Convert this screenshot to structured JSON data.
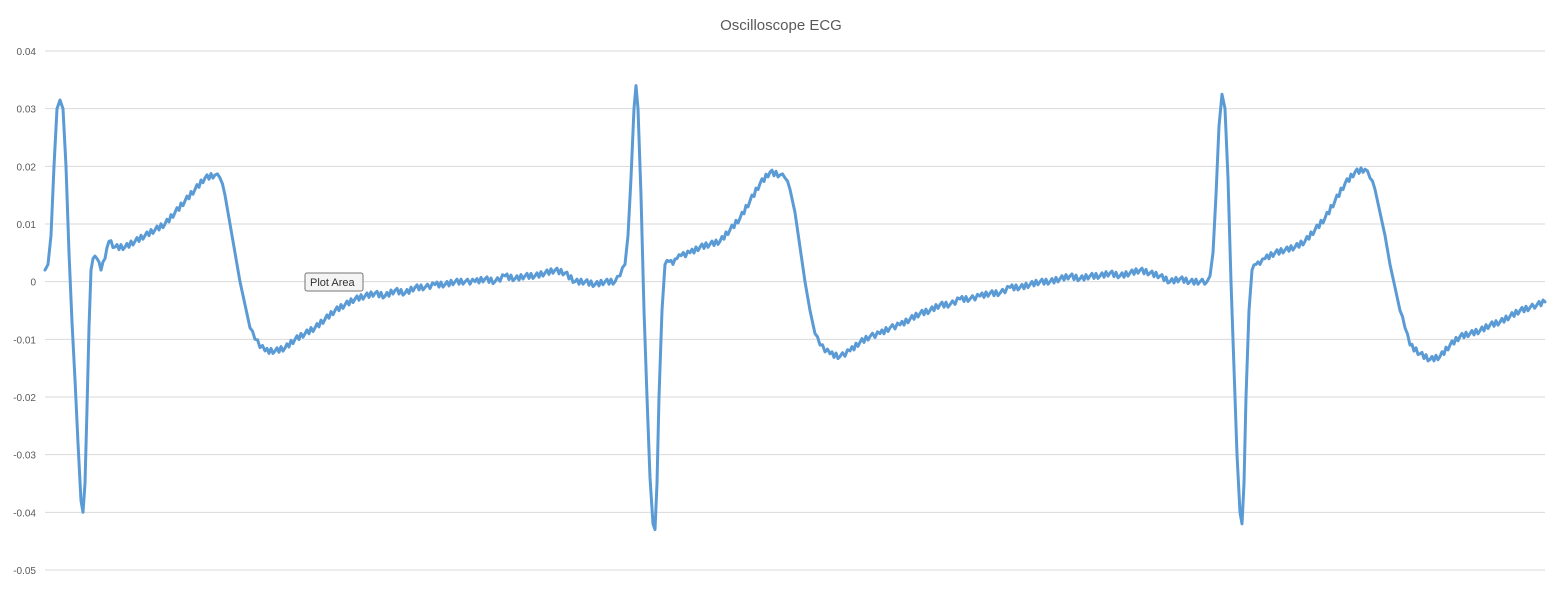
{
  "colors": {
    "series": "#5b9bd5",
    "grid": "#d9d9d9",
    "text": "#595959"
  },
  "tooltip": {
    "label": "Plot Area"
  },
  "chart_data": {
    "type": "line",
    "title": "Oscilloscope ECG",
    "xlabel": "",
    "ylabel": "",
    "ylim": [
      -0.05,
      0.04
    ],
    "yticks": [
      0.04,
      0.03,
      0.02,
      0.01,
      0,
      -0.01,
      -0.02,
      -0.03,
      -0.04,
      -0.05
    ],
    "ytick_labels": [
      "0.04",
      "0.03",
      "0.02",
      "0.01",
      "0",
      "-0.01",
      "-0.02",
      "-0.03",
      "-0.04",
      "-0.05"
    ],
    "grid": true,
    "legend": "none",
    "xlim": [
      0,
      1500
    ],
    "series": [
      {
        "points": [
          [
            0,
            0.002
          ],
          [
            3,
            0.003
          ],
          [
            6,
            0.008
          ],
          [
            9,
            0.02
          ],
          [
            12,
            0.03
          ],
          [
            15,
            0.0315
          ],
          [
            18,
            0.03
          ],
          [
            21,
            0.02
          ],
          [
            24,
            0.005
          ],
          [
            27,
            -0.007
          ],
          [
            30,
            -0.017
          ],
          [
            33,
            -0.028
          ],
          [
            36,
            -0.038
          ],
          [
            38,
            -0.04
          ],
          [
            40,
            -0.035
          ],
          [
            42,
            -0.022
          ],
          [
            44,
            -0.008
          ],
          [
            46,
            0.002
          ],
          [
            48,
            0.004
          ],
          [
            52,
            0.004
          ],
          [
            56,
            0.002
          ],
          [
            60,
            0.004
          ],
          [
            64,
            0.007
          ],
          [
            70,
            0.006
          ],
          [
            80,
            0.006
          ],
          [
            90,
            0.007
          ],
          [
            100,
            0.008
          ],
          [
            110,
            0.009
          ],
          [
            120,
            0.01
          ],
          [
            130,
            0.012
          ],
          [
            140,
            0.014
          ],
          [
            150,
            0.016
          ],
          [
            160,
            0.018
          ],
          [
            170,
            0.0185
          ],
          [
            175,
            0.018
          ],
          [
            180,
            0.015
          ],
          [
            185,
            0.01
          ],
          [
            190,
            0.005
          ],
          [
            195,
            0.0
          ],
          [
            200,
            -0.004
          ],
          [
            205,
            -0.008
          ],
          [
            210,
            -0.01
          ],
          [
            220,
            -0.012
          ],
          [
            230,
            -0.012
          ],
          [
            240,
            -0.0115
          ],
          [
            250,
            -0.01
          ],
          [
            260,
            -0.009
          ],
          [
            270,
            -0.008
          ],
          [
            280,
            -0.0065
          ],
          [
            290,
            -0.005
          ],
          [
            300,
            -0.004
          ],
          [
            310,
            -0.003
          ],
          [
            320,
            -0.0025
          ],
          [
            330,
            -0.002
          ],
          [
            340,
            -0.0025
          ],
          [
            350,
            -0.0015
          ],
          [
            360,
            -0.002
          ],
          [
            370,
            -0.001
          ],
          [
            380,
            -0.001
          ],
          [
            390,
            -0.0005
          ],
          [
            400,
            -0.0005
          ],
          [
            410,
            0.0
          ],
          [
            420,
            0.0
          ],
          [
            430,
            0.0
          ],
          [
            440,
            0.0005
          ],
          [
            450,
            0.0
          ],
          [
            460,
            0.001
          ],
          [
            470,
            0.0005
          ],
          [
            480,
            0.001
          ],
          [
            490,
            0.001
          ],
          [
            500,
            0.0015
          ],
          [
            510,
            0.002
          ],
          [
            520,
            0.0015
          ],
          [
            530,
            0.0
          ],
          [
            540,
            0.0
          ],
          [
            550,
            -0.0005
          ],
          [
            560,
            0.0
          ],
          [
            570,
            0.0
          ],
          [
            575,
            0.001
          ],
          [
            580,
            0.003
          ],
          [
            583,
            0.008
          ],
          [
            586,
            0.018
          ],
          [
            589,
            0.03
          ],
          [
            591,
            0.034
          ],
          [
            593,
            0.03
          ],
          [
            596,
            0.015
          ],
          [
            599,
            -0.005
          ],
          [
            602,
            -0.02
          ],
          [
            605,
            -0.034
          ],
          [
            608,
            -0.042
          ],
          [
            610,
            -0.043
          ],
          [
            612,
            -0.035
          ],
          [
            614,
            -0.02
          ],
          [
            617,
            -0.005
          ],
          [
            620,
            0.003
          ],
          [
            624,
            0.0035
          ],
          [
            628,
            0.003
          ],
          [
            632,
            0.004
          ],
          [
            636,
            0.0045
          ],
          [
            645,
            0.005
          ],
          [
            655,
            0.006
          ],
          [
            665,
            0.0065
          ],
          [
            675,
            0.007
          ],
          [
            685,
            0.009
          ],
          [
            695,
            0.011
          ],
          [
            705,
            0.014
          ],
          [
            715,
            0.017
          ],
          [
            725,
            0.019
          ],
          [
            735,
            0.0185
          ],
          [
            740,
            0.018
          ],
          [
            745,
            0.016
          ],
          [
            750,
            0.012
          ],
          [
            755,
            0.006
          ],
          [
            760,
            0.0
          ],
          [
            765,
            -0.005
          ],
          [
            770,
            -0.009
          ],
          [
            775,
            -0.011
          ],
          [
            785,
            -0.0125
          ],
          [
            795,
            -0.013
          ],
          [
            805,
            -0.012
          ],
          [
            815,
            -0.0105
          ],
          [
            825,
            -0.0095
          ],
          [
            835,
            -0.009
          ],
          [
            845,
            -0.008
          ],
          [
            855,
            -0.0075
          ],
          [
            865,
            -0.0065
          ],
          [
            875,
            -0.0055
          ],
          [
            885,
            -0.005
          ],
          [
            895,
            -0.004
          ],
          [
            905,
            -0.004
          ],
          [
            915,
            -0.003
          ],
          [
            925,
            -0.003
          ],
          [
            935,
            -0.0025
          ],
          [
            945,
            -0.002
          ],
          [
            955,
            -0.002
          ],
          [
            965,
            -0.001
          ],
          [
            975,
            -0.001
          ],
          [
            985,
            -0.0005
          ],
          [
            995,
            0.0
          ],
          [
            1005,
            0.0
          ],
          [
            1015,
            0.0005
          ],
          [
            1025,
            0.001
          ],
          [
            1035,
            0.0005
          ],
          [
            1045,
            0.001
          ],
          [
            1055,
            0.001
          ],
          [
            1065,
            0.0015
          ],
          [
            1075,
            0.001
          ],
          [
            1085,
            0.0015
          ],
          [
            1095,
            0.002
          ],
          [
            1105,
            0.0015
          ],
          [
            1115,
            0.001
          ],
          [
            1125,
            0.0
          ],
          [
            1135,
            0.0005
          ],
          [
            1145,
            0.0
          ],
          [
            1155,
            0.0
          ],
          [
            1162,
            0.0
          ],
          [
            1165,
            0.001
          ],
          [
            1168,
            0.005
          ],
          [
            1171,
            0.015
          ],
          [
            1174,
            0.027
          ],
          [
            1177,
            0.0325
          ],
          [
            1180,
            0.03
          ],
          [
            1183,
            0.018
          ],
          [
            1186,
            0.0
          ],
          [
            1189,
            -0.015
          ],
          [
            1192,
            -0.03
          ],
          [
            1195,
            -0.04
          ],
          [
            1197,
            -0.042
          ],
          [
            1199,
            -0.035
          ],
          [
            1201,
            -0.02
          ],
          [
            1204,
            -0.005
          ],
          [
            1207,
            0.002
          ],
          [
            1211,
            0.003
          ],
          [
            1215,
            0.003
          ],
          [
            1220,
            0.004
          ],
          [
            1230,
            0.005
          ],
          [
            1240,
            0.0055
          ],
          [
            1250,
            0.006
          ],
          [
            1260,
            0.007
          ],
          [
            1270,
            0.009
          ],
          [
            1280,
            0.011
          ],
          [
            1290,
            0.014
          ],
          [
            1300,
            0.017
          ],
          [
            1310,
            0.019
          ],
          [
            1320,
            0.0195
          ],
          [
            1325,
            0.018
          ],
          [
            1330,
            0.016
          ],
          [
            1335,
            0.012
          ],
          [
            1340,
            0.008
          ],
          [
            1345,
            0.003
          ],
          [
            1350,
            -0.001
          ],
          [
            1355,
            -0.005
          ],
          [
            1360,
            -0.008
          ],
          [
            1365,
            -0.011
          ],
          [
            1375,
            -0.0125
          ],
          [
            1385,
            -0.0135
          ],
          [
            1395,
            -0.013
          ],
          [
            1405,
            -0.011
          ],
          [
            1415,
            -0.0095
          ],
          [
            1425,
            -0.009
          ],
          [
            1435,
            -0.0085
          ],
          [
            1445,
            -0.0075
          ],
          [
            1455,
            -0.007
          ],
          [
            1465,
            -0.006
          ],
          [
            1475,
            -0.005
          ],
          [
            1485,
            -0.0045
          ],
          [
            1492,
            -0.004
          ],
          [
            1500,
            -0.0035
          ]
        ]
      }
    ]
  }
}
